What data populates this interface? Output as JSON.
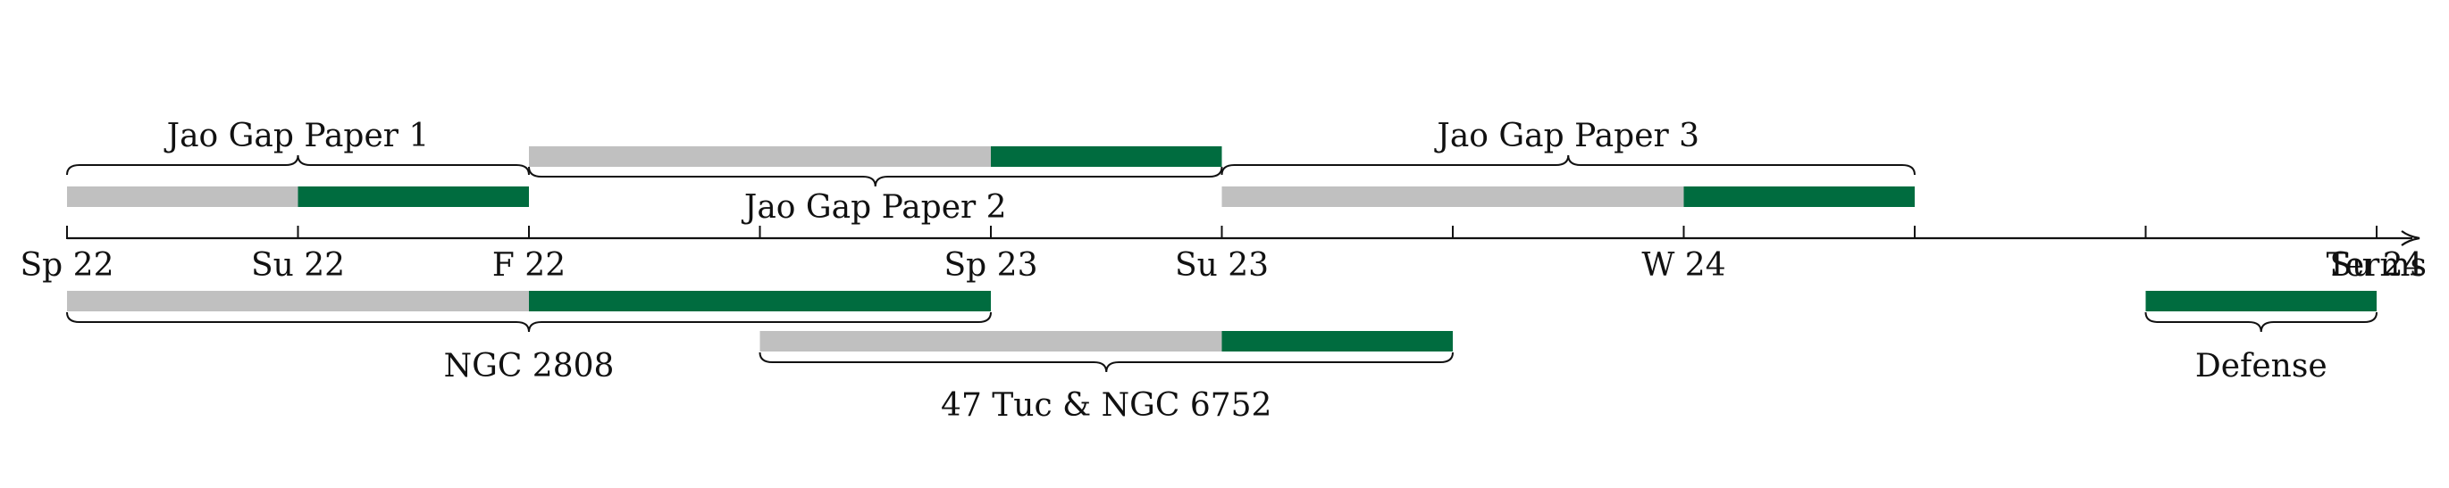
{
  "axis": {
    "label": "Terms",
    "ticks": [
      "Sp 22",
      "Su 22",
      "F 22",
      "",
      "Sp 23",
      "Su 23",
      "",
      "W 24",
      "",
      "",
      "Su 24"
    ]
  },
  "colors": {
    "pending": "#c0c0c0",
    "complete": "#006c3f",
    "ink": "#111111"
  },
  "tasks": [
    {
      "label": "Jao Gap Paper 1",
      "segments": [
        {
          "start": 0,
          "end": 1,
          "status": "pending"
        },
        {
          "start": 1,
          "end": 2,
          "status": "complete"
        }
      ]
    },
    {
      "label": "Jao Gap Paper 2",
      "segments": [
        {
          "start": 2,
          "end": 4,
          "status": "pending"
        },
        {
          "start": 4,
          "end": 5,
          "status": "complete"
        }
      ]
    },
    {
      "label": "Jao Gap Paper 3",
      "segments": [
        {
          "start": 5,
          "end": 7,
          "status": "pending"
        },
        {
          "start": 7,
          "end": 8,
          "status": "complete"
        }
      ]
    },
    {
      "label": "NGC 2808",
      "segments": [
        {
          "start": 0,
          "end": 2,
          "status": "pending"
        },
        {
          "start": 2,
          "end": 4,
          "status": "complete"
        }
      ]
    },
    {
      "label": "47 Tuc & NGC 6752",
      "segments": [
        {
          "start": 3,
          "end": 5,
          "status": "pending"
        },
        {
          "start": 5,
          "end": 6,
          "status": "complete"
        }
      ]
    },
    {
      "label": "Defense",
      "segments": [
        {
          "start": 9,
          "end": 10,
          "status": "complete"
        }
      ]
    }
  ]
}
